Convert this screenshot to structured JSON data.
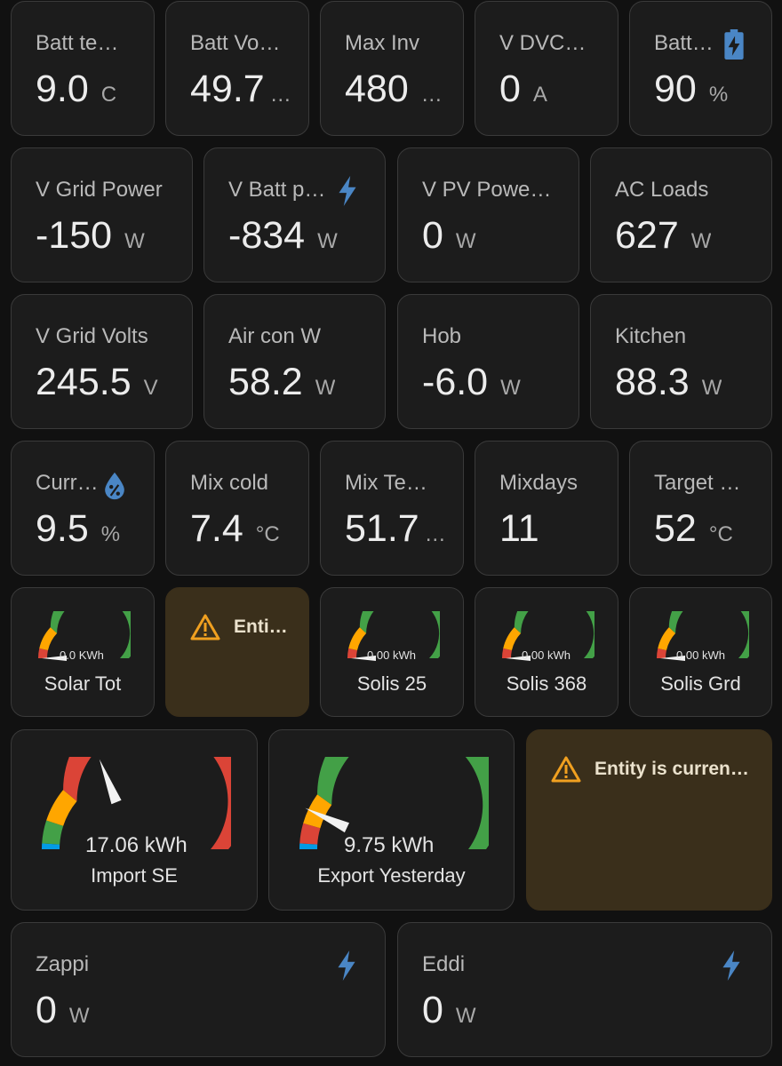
{
  "colors": {
    "background": "#111111",
    "card": "#1c1c1c",
    "warning_card": "#3a2f1b",
    "icon_blue": "#4a86c5",
    "warning_icon": "#f0a020",
    "gauge_green": "#43a047",
    "gauge_yellow": "#ffa600",
    "gauge_red": "#db4437",
    "gauge_blue": "#039be5"
  },
  "row1": [
    {
      "name": "Batt te…",
      "value": "9.0",
      "unit": "C",
      "ellipsis": ""
    },
    {
      "name": "Batt Vo…",
      "value": "49.7",
      "unit": "",
      "ellipsis": "…"
    },
    {
      "name": "Max Inv",
      "value": "480",
      "unit": "",
      "ellipsis": "…"
    },
    {
      "name": "V DVC…",
      "value": "0",
      "unit": "A",
      "ellipsis": ""
    },
    {
      "name": "Batt…",
      "value": "90",
      "unit": "%",
      "ellipsis": "",
      "icon": "battery-charging-icon"
    }
  ],
  "row2": [
    {
      "name": "V Grid Power",
      "value": "-150",
      "unit": "W"
    },
    {
      "name": "V Batt p…",
      "value": "-834",
      "unit": "W",
      "icon": "lightning-bolt-icon"
    },
    {
      "name": "V PV Powe…",
      "value": "0",
      "unit": "W"
    },
    {
      "name": "AC Loads",
      "value": "627",
      "unit": "W"
    }
  ],
  "row3": [
    {
      "name": "V Grid Volts",
      "value": "245.5",
      "unit": "V"
    },
    {
      "name": "Air con W",
      "value": "58.2",
      "unit": "W"
    },
    {
      "name": "Hob",
      "value": "-6.0",
      "unit": "W"
    },
    {
      "name": "Kitchen",
      "value": "88.3",
      "unit": "W"
    }
  ],
  "row4": [
    {
      "name": "Curr…",
      "value": "9.5",
      "unit": "%",
      "ellipsis": "",
      "icon": "water-percent-icon"
    },
    {
      "name": "Mix cold",
      "value": "7.4",
      "unit": "°C",
      "ellipsis": ""
    },
    {
      "name": "Mix Te…",
      "value": "51.7",
      "unit": "",
      "ellipsis": "…"
    },
    {
      "name": "Mixdays",
      "value": "11",
      "unit": "",
      "ellipsis": ""
    },
    {
      "name": "Target …",
      "value": "52",
      "unit": "°C",
      "ellipsis": ""
    }
  ],
  "gauges_small": [
    {
      "label": "Solar Tot",
      "value": "0.0",
      "unit": "KWh",
      "level": 0.0
    },
    {
      "label": "Solis 25",
      "value": "0.00",
      "unit": "kWh",
      "level": 0.0
    },
    {
      "label": "Solis 368",
      "value": "0.00",
      "unit": "kWh",
      "level": 0.0
    },
    {
      "label": "Solis Grd",
      "value": "0.00",
      "unit": "kWh",
      "level": 0.0
    }
  ],
  "warning_small": {
    "text": "Enti…",
    "icon": "alert-triangle-icon"
  },
  "gauges_large": [
    {
      "label": "Import SE",
      "value": "17.06",
      "unit": "kWh",
      "level": 0.38,
      "scheme": "import"
    },
    {
      "label": "Export Yesterday",
      "value": "9.75",
      "unit": "kWh",
      "level": 0.14,
      "scheme": "export"
    }
  ],
  "warning_large": {
    "text": "Entity is curren…",
    "icon": "alert-triangle-icon"
  },
  "row7": [
    {
      "name": "Zappi",
      "value": "0",
      "unit": "W",
      "icon": "lightning-bolt-icon"
    },
    {
      "name": "Eddi",
      "value": "0",
      "unit": "W",
      "icon": "lightning-bolt-icon"
    }
  ]
}
